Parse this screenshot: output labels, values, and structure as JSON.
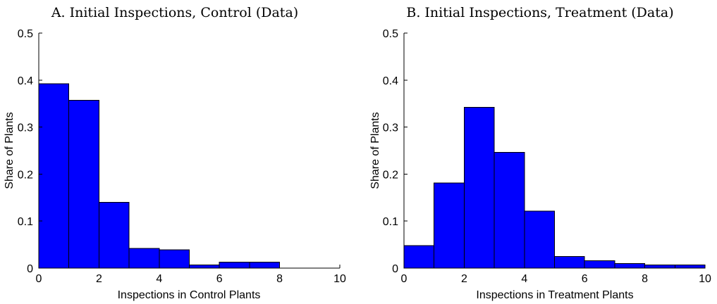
{
  "chart_data": [
    {
      "type": "bar",
      "title": "A. Initial Inspections, Control (Data)",
      "xlabel": "Inspections in Control Plants",
      "ylabel": "Share of Plants",
      "xlim": [
        0,
        10
      ],
      "ylim": [
        0,
        0.5
      ],
      "xticks": [
        "0",
        "2",
        "4",
        "6",
        "8",
        "10"
      ],
      "yticks": [
        "0",
        "0.1",
        "0.2",
        "0.3",
        "0.4",
        "0.5"
      ],
      "bins": [
        [
          0,
          1
        ],
        [
          1,
          2
        ],
        [
          2,
          3
        ],
        [
          3,
          4
        ],
        [
          4,
          5
        ],
        [
          5,
          6
        ],
        [
          6,
          7
        ],
        [
          7,
          8
        ],
        [
          8,
          9
        ],
        [
          9,
          10
        ]
      ],
      "values": [
        0.392,
        0.357,
        0.14,
        0.042,
        0.039,
        0.007,
        0.013,
        0.013,
        0,
        0
      ],
      "grid": false,
      "bar_color": "#0000ff"
    },
    {
      "type": "bar",
      "title": "B. Initial Inspections, Treatment (Data)",
      "xlabel": "Inspections in Treatment Plants",
      "ylabel": "Share of Plants",
      "xlim": [
        0,
        10
      ],
      "ylim": [
        0,
        0.5
      ],
      "xticks": [
        "0",
        "2",
        "4",
        "6",
        "8",
        "10"
      ],
      "yticks": [
        "0",
        "0.1",
        "0.2",
        "0.3",
        "0.4",
        "0.5"
      ],
      "bins": [
        [
          0,
          1
        ],
        [
          1,
          2
        ],
        [
          2,
          3
        ],
        [
          3,
          4
        ],
        [
          4,
          5
        ],
        [
          5,
          6
        ],
        [
          6,
          7
        ],
        [
          7,
          8
        ],
        [
          8,
          9
        ],
        [
          9,
          10
        ]
      ],
      "values": [
        0.048,
        0.181,
        0.342,
        0.246,
        0.121,
        0.025,
        0.016,
        0.01,
        0.007,
        0.007
      ],
      "grid": false,
      "bar_color": "#0000ff"
    }
  ]
}
